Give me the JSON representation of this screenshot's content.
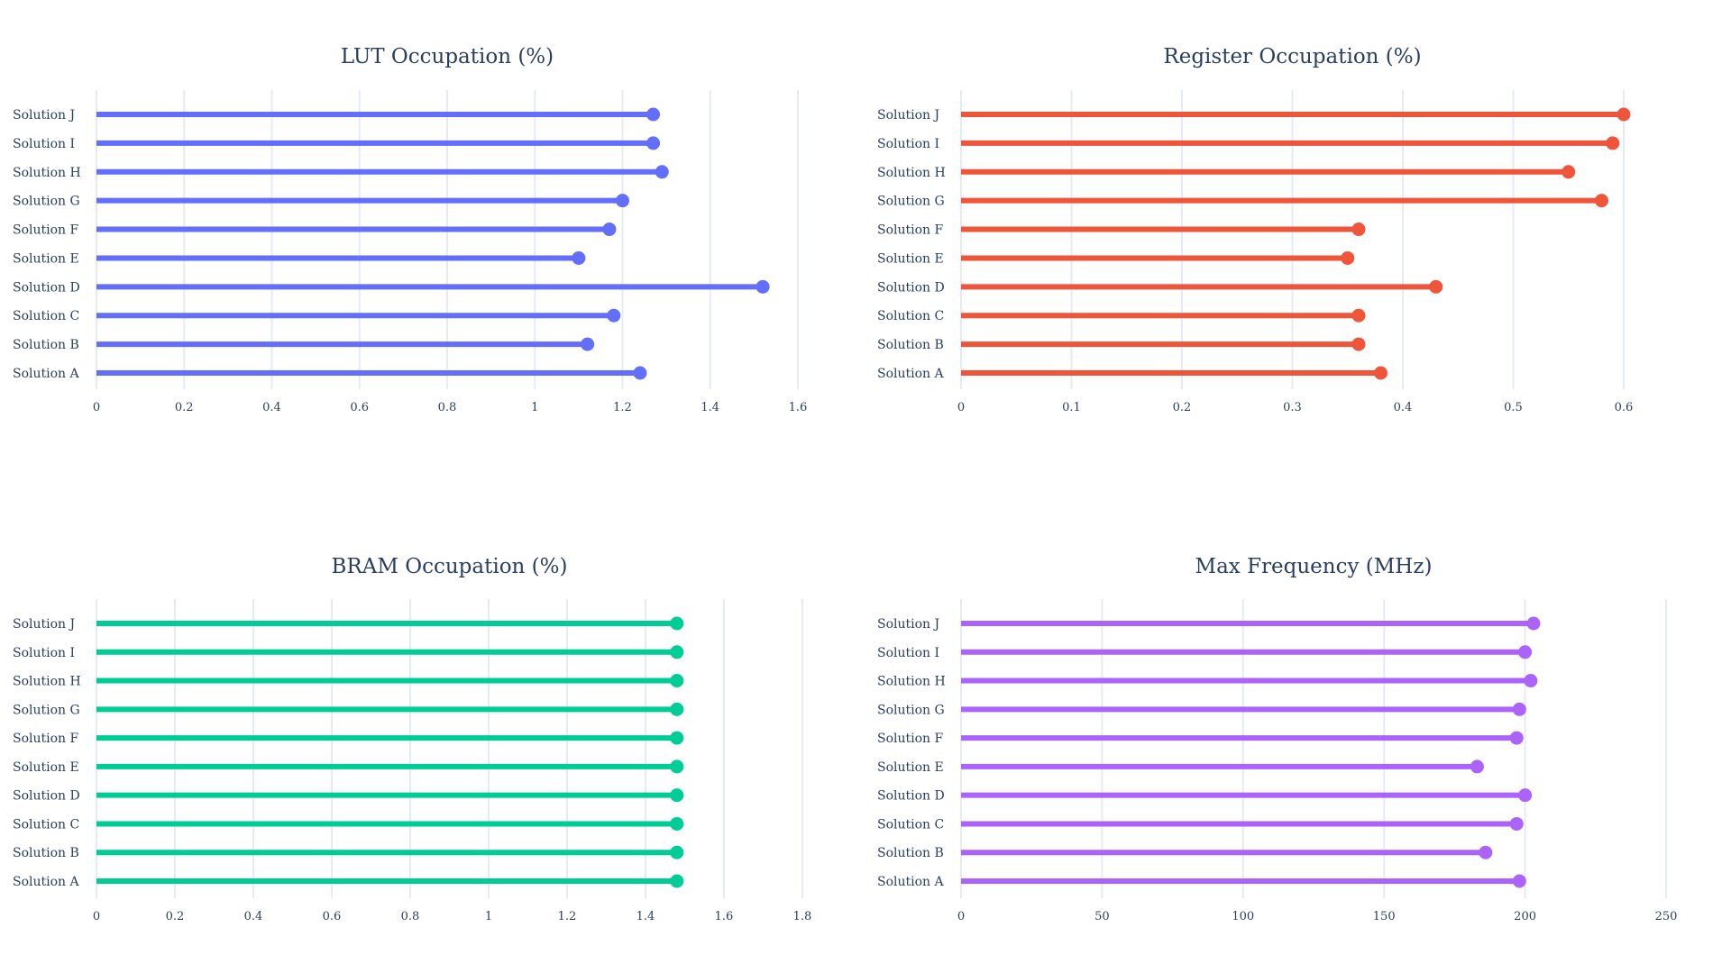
{
  "chart_data": [
    {
      "type": "lollipop",
      "orientation": "horizontal",
      "title": "LUT Occupation (%)",
      "color": "#636efa",
      "categories": [
        "Solution A",
        "Solution B",
        "Solution C",
        "Solution D",
        "Solution E",
        "Solution F",
        "Solution G",
        "Solution H",
        "Solution I",
        "Solution J"
      ],
      "values": [
        1.24,
        1.12,
        1.18,
        1.52,
        1.1,
        1.17,
        1.2,
        1.29,
        1.27,
        1.27
      ],
      "xlim": [
        0,
        1.6
      ],
      "xticks": [
        0,
        0.2,
        0.4,
        0.6,
        0.8,
        1,
        1.2,
        1.4,
        1.6
      ],
      "xtick_labels": [
        "0",
        "0.2",
        "0.4",
        "0.6",
        "0.8",
        "1",
        "1.2",
        "1.4",
        "1.6"
      ],
      "grid": true
    },
    {
      "type": "lollipop",
      "orientation": "horizontal",
      "title": "Register Occupation (%)",
      "color": "#ef553b",
      "categories": [
        "Solution A",
        "Solution B",
        "Solution C",
        "Solution D",
        "Solution E",
        "Solution F",
        "Solution G",
        "Solution H",
        "Solution I",
        "Solution J"
      ],
      "values": [
        0.38,
        0.36,
        0.36,
        0.43,
        0.35,
        0.36,
        0.58,
        0.55,
        0.59,
        0.6
      ],
      "xlim": [
        0,
        0.6
      ],
      "xticks": [
        0,
        0.1,
        0.2,
        0.3,
        0.4,
        0.5,
        0.6
      ],
      "xtick_labels": [
        "0",
        "0.1",
        "0.2",
        "0.3",
        "0.4",
        "0.5",
        "0.6"
      ],
      "grid": true
    },
    {
      "type": "lollipop",
      "orientation": "horizontal",
      "title": "BRAM Occupation (%)",
      "color": "#00cc96",
      "categories": [
        "Solution A",
        "Solution B",
        "Solution C",
        "Solution D",
        "Solution E",
        "Solution F",
        "Solution G",
        "Solution H",
        "Solution I",
        "Solution J"
      ],
      "values": [
        1.48,
        1.48,
        1.48,
        1.48,
        1.48,
        1.48,
        1.48,
        1.48,
        1.48,
        1.48
      ],
      "xlim": [
        0,
        1.8
      ],
      "xticks": [
        0,
        0.2,
        0.4,
        0.6,
        0.8,
        1,
        1.2,
        1.4,
        1.6,
        1.8
      ],
      "xtick_labels": [
        "0",
        "0.2",
        "0.4",
        "0.6",
        "0.8",
        "1",
        "1.2",
        "1.4",
        "1.6",
        "1.8"
      ],
      "grid": true
    },
    {
      "type": "lollipop",
      "orientation": "horizontal",
      "title": "Max Frequency (MHz)",
      "color": "#ab63fa",
      "categories": [
        "Solution A",
        "Solution B",
        "Solution C",
        "Solution D",
        "Solution E",
        "Solution F",
        "Solution G",
        "Solution H",
        "Solution I",
        "Solution J"
      ],
      "values": [
        198,
        186,
        197,
        200,
        183,
        197,
        198,
        202,
        200,
        203
      ],
      "xlim": [
        0,
        250
      ],
      "xticks": [
        0,
        50,
        100,
        150,
        200,
        250
      ],
      "xtick_labels": [
        "0",
        "50",
        "100",
        "150",
        "200",
        "250"
      ],
      "grid": true
    }
  ]
}
